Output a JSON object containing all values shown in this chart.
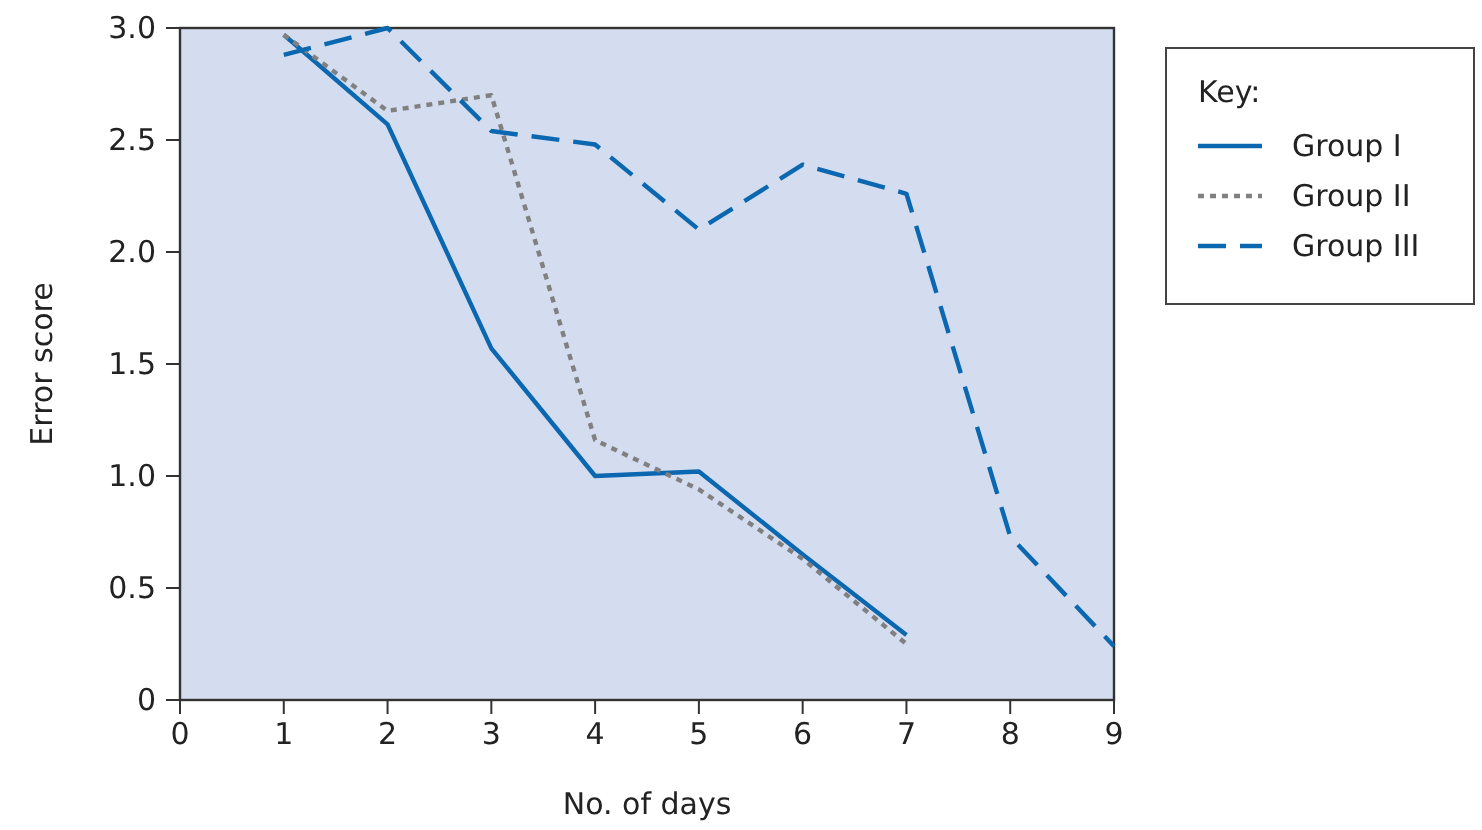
{
  "chart_data": {
    "type": "line",
    "xlabel": "No. of days",
    "ylabel": "Error score",
    "legend_title": "Key:",
    "legend": "right",
    "grid": false,
    "xlim": [
      0,
      9
    ],
    "xticks": [
      0,
      1,
      2,
      3,
      4,
      5,
      6,
      7,
      8,
      9
    ],
    "ylim": [
      0,
      3
    ],
    "yticks": [
      {
        "value": 0,
        "label": "0"
      },
      {
        "value": 0.5,
        "label": "0.5"
      },
      {
        "value": 1,
        "label": "1.0"
      },
      {
        "value": 1.5,
        "label": "1.5"
      },
      {
        "value": 2,
        "label": "2.0"
      },
      {
        "value": 2.5,
        "label": "2.5"
      },
      {
        "value": 3,
        "label": "3.0"
      }
    ],
    "series": [
      {
        "name": "Group I",
        "color": "#0a67b0",
        "line_style": "solid",
        "x": [
          1,
          2,
          3,
          4,
          5,
          6,
          7
        ],
        "values": [
          2.97,
          2.57,
          1.57,
          1.0,
          1.02,
          0.65,
          0.29
        ]
      },
      {
        "name": "Group II",
        "color": "#808080",
        "line_style": "dotted",
        "x": [
          1,
          2,
          3,
          4,
          5,
          6,
          7
        ],
        "values": [
          2.97,
          2.63,
          2.7,
          1.16,
          0.94,
          0.63,
          0.25
        ]
      },
      {
        "name": "Group III",
        "color": "#0a67b0",
        "line_style": "dashed",
        "x": [
          1,
          2,
          3,
          4,
          5,
          6,
          7,
          8,
          9
        ],
        "values": [
          2.88,
          3.0,
          2.54,
          2.48,
          2.1,
          2.39,
          2.26,
          0.73,
          0.24
        ]
      }
    ]
  }
}
